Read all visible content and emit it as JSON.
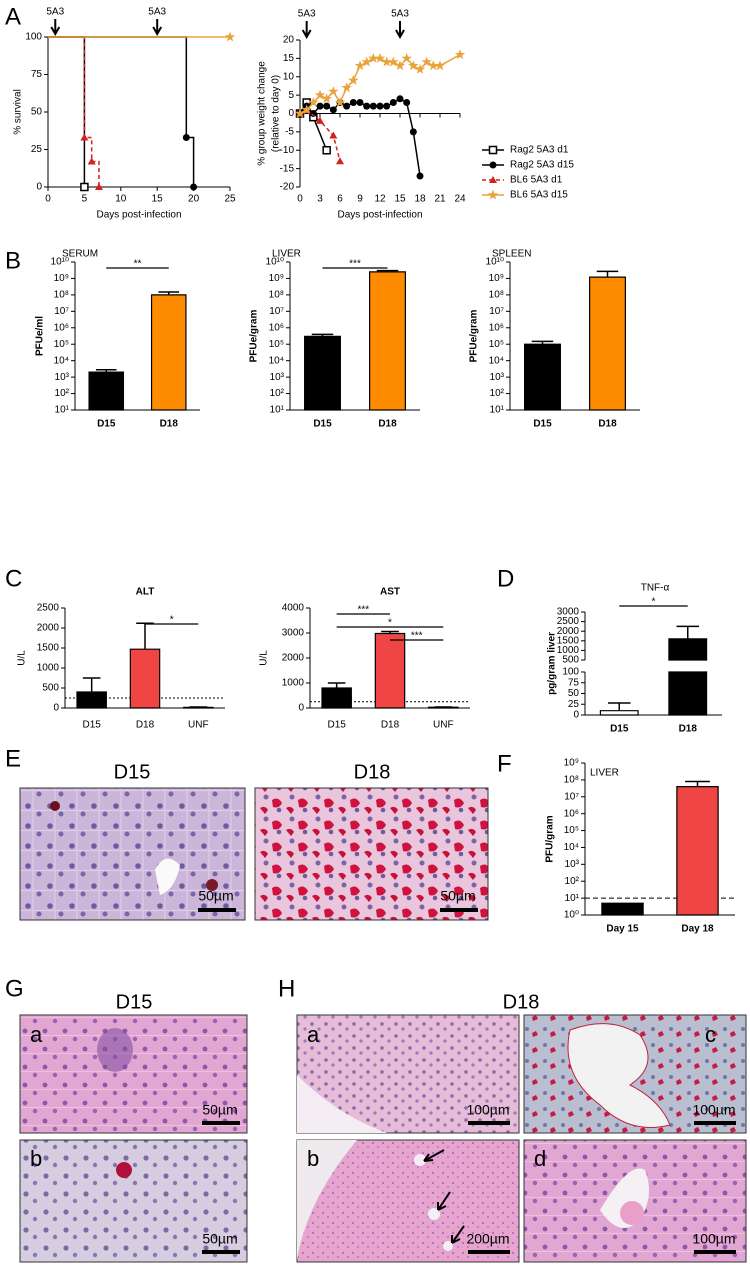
{
  "panel_labels": [
    "A",
    "B",
    "C",
    "D",
    "E",
    "F",
    "G",
    "H"
  ],
  "chart_data": [
    {
      "type": "line",
      "markers": "drops",
      "ylabel": [
        "% survival"
      ],
      "xlabel": "Days post-infection",
      "xlim": [
        0,
        25
      ],
      "xticks": [
        0,
        5,
        10,
        15,
        20,
        25
      ],
      "ylim": [
        0,
        100
      ],
      "yticks": [
        0,
        25,
        50,
        75,
        100
      ],
      "annotations": [
        {
          "x": 1,
          "text": "5A3"
        },
        {
          "x": 15,
          "text": "5A3"
        }
      ],
      "series": [
        {
          "color": "#000000",
          "marker": "square-open",
          "x": [
            0,
            5,
            5
          ],
          "values": [
            100,
            100,
            0
          ]
        },
        {
          "color": "#000000",
          "marker": "circle",
          "x": [
            0,
            19,
            19,
            20,
            20
          ],
          "values": [
            100,
            100,
            33,
            33,
            0
          ]
        },
        {
          "color": "#d42020",
          "marker": "triangle",
          "dash": true,
          "x": [
            0,
            5,
            5,
            6,
            6,
            7,
            7
          ],
          "values": [
            100,
            100,
            33,
            33,
            17,
            17,
            0
          ]
        },
        {
          "color": "#e8a33a",
          "marker": "star",
          "x": [
            0,
            25
          ],
          "values": [
            100,
            100
          ]
        }
      ]
    },
    {
      "type": "line",
      "markers": "all",
      "ylabel": [
        "% group weight change",
        "(relative to day 0)"
      ],
      "xlabel": "Days post-infection",
      "xlim": [
        0,
        24
      ],
      "xticks": [
        0,
        3,
        6,
        9,
        12,
        15,
        18,
        21,
        24
      ],
      "ylim": [
        -20,
        20
      ],
      "yticks": [
        -20,
        -15,
        -10,
        -5,
        0,
        5,
        10,
        15,
        20
      ],
      "annotations": [
        {
          "x": 1,
          "text": "5A3"
        },
        {
          "x": 15,
          "text": "5A3"
        }
      ],
      "legend": "right",
      "series": [
        {
          "name": "Rag2 5A3 d1",
          "color": "#000000",
          "marker": "square-open",
          "x": [
            0,
            1,
            2,
            4
          ],
          "values": [
            0,
            3,
            -1,
            -10
          ]
        },
        {
          "name": "Rag2 5A3 d15",
          "color": "#000000",
          "marker": "circle",
          "x": [
            0,
            1,
            2,
            3,
            4,
            5,
            6,
            7,
            8,
            9,
            10,
            11,
            12,
            13,
            14,
            15,
            16,
            17,
            18
          ],
          "values": [
            0,
            2,
            0,
            2,
            2,
            1,
            3,
            2,
            3,
            3,
            2,
            2,
            2,
            2,
            3,
            4,
            3,
            -5,
            -17
          ]
        },
        {
          "name": "BL6 5A3 d1",
          "color": "#d42020",
          "marker": "triangle",
          "dash": true,
          "x": [
            0,
            1,
            3,
            5,
            6
          ],
          "values": [
            0,
            1,
            -2,
            -6,
            -13
          ]
        },
        {
          "name": "BL6 5A3 d15",
          "color": "#e8a33a",
          "marker": "star",
          "x": [
            0,
            1,
            2,
            3,
            4,
            5,
            6,
            7,
            8,
            9,
            10,
            11,
            12,
            13,
            14,
            15,
            16,
            17,
            18,
            19,
            20,
            21,
            24
          ],
          "values": [
            0,
            1,
            3,
            5,
            4,
            6,
            3,
            7,
            9,
            13,
            14,
            15,
            15,
            14,
            14,
            13,
            15,
            13,
            12,
            14,
            13,
            13,
            16
          ]
        }
      ]
    },
    {
      "type": "bar",
      "log": true,
      "title": "SERUM",
      "ylabel": "PFUe/ml",
      "categories": [
        "D15",
        "D18"
      ],
      "values": [
        2000,
        100000000
      ],
      "errors": [
        800,
        50000000
      ],
      "colors": [
        "#000000",
        "#ff8c00"
      ],
      "ylim": [
        10,
        10000000000
      ],
      "yticks": [
        {
          "value": 10,
          "label": "10¹"
        },
        {
          "value": 100,
          "label": "10²"
        },
        {
          "value": 1000,
          "label": "10³"
        },
        {
          "value": 10000,
          "label": "10⁴"
        },
        {
          "value": 100000,
          "label": "10⁵"
        },
        {
          "value": 1000000,
          "label": "10⁶"
        },
        {
          "value": 10000000,
          "label": "10⁷"
        },
        {
          "value": 100000000,
          "label": "10⁸"
        },
        {
          "value": 1000000000,
          "label": "10⁹"
        },
        {
          "value": 10000000000,
          "label": "10¹⁰"
        }
      ],
      "significance": [
        {
          "from": 0,
          "to": 1,
          "text": "**"
        }
      ]
    },
    {
      "type": "bar",
      "log": true,
      "title": "LIVER",
      "ylabel": "PFUe/gram",
      "categories": [
        "D15",
        "D18"
      ],
      "values": [
        300000,
        2500000000
      ],
      "errors": [
        100000,
        500000000
      ],
      "colors": [
        "#000000",
        "#ff8c00"
      ],
      "ylim": [
        10,
        10000000000
      ],
      "yticks": [
        {
          "value": 10,
          "label": "10¹"
        },
        {
          "value": 100,
          "label": "10²"
        },
        {
          "value": 1000,
          "label": "10³"
        },
        {
          "value": 10000,
          "label": "10⁴"
        },
        {
          "value": 100000,
          "label": "10⁵"
        },
        {
          "value": 1000000,
          "label": "10⁶"
        },
        {
          "value": 10000000,
          "label": "10⁷"
        },
        {
          "value": 100000000,
          "label": "10⁸"
        },
        {
          "value": 1000000000,
          "label": "10⁹"
        },
        {
          "value": 10000000000,
          "label": "10¹⁰"
        }
      ],
      "significance": [
        {
          "from": 0,
          "to": 1,
          "text": "***"
        }
      ]
    },
    {
      "type": "bar",
      "log": true,
      "title": "SPLEEN",
      "ylabel": "PFUe/gram",
      "categories": [
        "D15",
        "D18"
      ],
      "values": [
        100000,
        1200000000
      ],
      "errors": [
        50000,
        1500000000
      ],
      "colors": [
        "#000000",
        "#ff8c00"
      ],
      "ylim": [
        10,
        10000000000
      ],
      "yticks": [
        {
          "value": 10,
          "label": "10¹"
        },
        {
          "value": 100,
          "label": "10²"
        },
        {
          "value": 1000,
          "label": "10³"
        },
        {
          "value": 10000,
          "label": "10⁴"
        },
        {
          "value": 100000,
          "label": "10⁵"
        },
        {
          "value": 1000000,
          "label": "10⁶"
        },
        {
          "value": 10000000,
          "label": "10⁷"
        },
        {
          "value": 100000000,
          "label": "10⁸"
        },
        {
          "value": 1000000000,
          "label": "10⁹"
        },
        {
          "value": 10000000000,
          "label": "10¹⁰"
        }
      ]
    },
    {
      "type": "bar",
      "title": "ALT",
      "ylabel": "U/L",
      "categories": [
        "D15",
        "D18",
        "UNF"
      ],
      "values": [
        400,
        1470,
        15
      ],
      "errors": [
        350,
        650,
        10
      ],
      "colors": [
        "#000000",
        "#f04545",
        "#000000"
      ],
      "ylim": [
        0,
        2500
      ],
      "yticks": [
        0,
        500,
        1000,
        1500,
        2000,
        2500
      ],
      "refline": 250,
      "significance": [
        {
          "from": 1,
          "to": 2,
          "text": "*"
        }
      ]
    },
    {
      "type": "bar",
      "title": "AST",
      "ylabel": "U/L",
      "categories": [
        "D15",
        "D18",
        "UNF"
      ],
      "values": [
        800,
        2980,
        30
      ],
      "errors": [
        200,
        80,
        10
      ],
      "colors": [
        "#000000",
        "#f04545",
        "#000000"
      ],
      "ylim": [
        0,
        4000
      ],
      "yticks": [
        0,
        1000,
        2000,
        3000,
        4000
      ],
      "refline": 250,
      "significance": [
        {
          "from": 0,
          "to": 1,
          "text": "***"
        },
        {
          "from": 0,
          "to": 2,
          "text": "*"
        },
        {
          "from": 1,
          "to": 2,
          "text": "***"
        }
      ]
    },
    {
      "type": "bar",
      "broken": true,
      "title": "TNF-α",
      "ylabel": "pg/gram liver",
      "categories": [
        "D15",
        "D18"
      ],
      "values": [
        10,
        1600
      ],
      "errors": [
        18,
        650
      ],
      "colors": [
        "#ffffff",
        "#000000"
      ],
      "ylim": [
        0,
        100
      ],
      "yticks": [
        0,
        25,
        50,
        75,
        100
      ],
      "ylim_upper": [
        500,
        3000
      ],
      "yticks_upper": [
        500,
        1000,
        1500,
        2000,
        2500,
        3000
      ],
      "significance": [
        {
          "from": 0,
          "to": 1,
          "text": "*"
        }
      ]
    },
    {
      "type": "bar",
      "log": true,
      "title": "LIVER",
      "ylabel": "PFU/gram",
      "categories": [
        "Day 15",
        "Day 18"
      ],
      "values": [
        5,
        40000000
      ],
      "errors": [
        null,
        40000000
      ],
      "colors": [
        "#000000",
        "#f04545"
      ],
      "ylim": [
        1,
        1000000000
      ],
      "refline": 10,
      "yticks": [
        {
          "value": 1,
          "label": "10⁰"
        },
        {
          "value": 10,
          "label": "10¹"
        },
        {
          "value": 100,
          "label": "10²"
        },
        {
          "value": 1000,
          "label": "10³"
        },
        {
          "value": 10000,
          "label": "10⁴"
        },
        {
          "value": 100000,
          "label": "10⁵"
        },
        {
          "value": 1000000,
          "label": "10⁶"
        },
        {
          "value": 10000000,
          "label": "10⁷"
        },
        {
          "value": 100000000,
          "label": "10⁸"
        },
        {
          "value": 1000000000,
          "label": "10⁹"
        }
      ]
    }
  ],
  "micrographs": {
    "E": [
      {
        "title": "D15",
        "scale": "50µm"
      },
      {
        "title": "D18",
        "scale": "50µm"
      }
    ],
    "G": {
      "title": "D15",
      "items": [
        {
          "label": "a",
          "scale": "50µm"
        },
        {
          "label": "b",
          "scale": "50µm"
        }
      ]
    },
    "H": {
      "title": "D18",
      "items": [
        {
          "label": "a",
          "scale": "100µm"
        },
        {
          "label": "b",
          "scale": "200µm"
        },
        {
          "label": "c",
          "scale": "100µm"
        },
        {
          "label": "d",
          "scale": "100µm"
        }
      ]
    }
  }
}
